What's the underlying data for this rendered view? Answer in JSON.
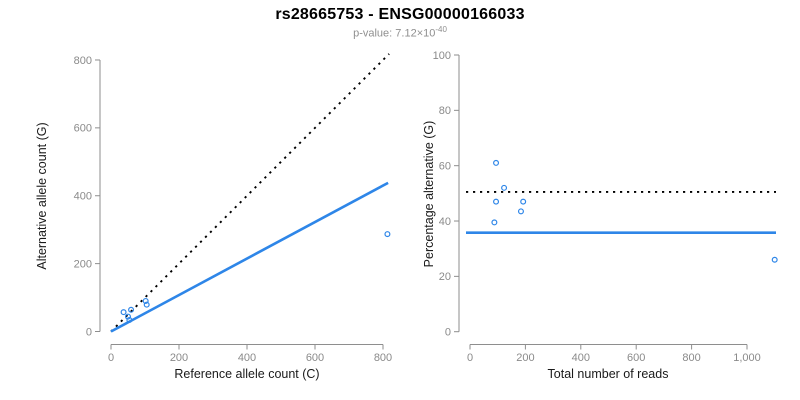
{
  "header": {
    "title": "rs28665753 - ENSG00000166033",
    "subtitle_prefix": "p-value: ",
    "subtitle_mantissa": "7.12×10",
    "subtitle_exponent": "-40"
  },
  "colors": {
    "accent_blue": "#2E86E8",
    "dotted_black": "#000000",
    "axis_gray": "#8E8E8E",
    "tick_label_gray": "#8A8A8A",
    "axis_title_color": "#1A1A1A",
    "background": "#FFFFFF"
  },
  "chart_data": [
    {
      "type": "scatter",
      "panel": "left",
      "xlabel": "Reference allele count (C)",
      "ylabel": "Alternative allele count (G)",
      "xlim": [
        0,
        800
      ],
      "ylim": [
        0,
        800
      ],
      "grid": false,
      "legend": null,
      "xticks": {
        "values": [
          0,
          200,
          400,
          600,
          800
        ],
        "labels": [
          "0",
          "200",
          "400",
          "600",
          "800"
        ]
      },
      "yticks": {
        "values": [
          0,
          200,
          400,
          600,
          800
        ],
        "labels": [
          "0",
          "200",
          "400",
          "600",
          "800"
        ]
      },
      "points": [
        [
          37,
          57
        ],
        [
          59,
          64
        ],
        [
          50,
          44
        ],
        [
          102,
          90
        ],
        [
          105,
          79
        ],
        [
          54,
          34
        ],
        [
          813,
          287
        ]
      ],
      "lines": [
        {
          "name": "identity-line",
          "style": "dotted",
          "color_key": "dotted_black",
          "x1": 0,
          "y1": 0,
          "x2": 818,
          "y2": 818
        },
        {
          "name": "fit-line",
          "style": "solid",
          "color_key": "accent_blue",
          "x1": 0,
          "y1": 0,
          "x2": 815,
          "y2": 438
        }
      ]
    },
    {
      "type": "scatter",
      "panel": "right",
      "xlabel": "Total number of reads",
      "ylabel": "Percentage alternative (G)",
      "xlim": [
        0,
        1000
      ],
      "ylim": [
        0,
        100
      ],
      "grid": false,
      "legend": null,
      "xticks": {
        "values": [
          0,
          200,
          400,
          600,
          800,
          1000
        ],
        "labels": [
          "0",
          "200",
          "400",
          "600",
          "800",
          "1,000"
        ]
      },
      "yticks": {
        "values": [
          0,
          20,
          40,
          60,
          80,
          100
        ],
        "labels": [
          "0",
          "20",
          "40",
          "60",
          "80",
          "100"
        ]
      },
      "points": [
        [
          94,
          61
        ],
        [
          123,
          52
        ],
        [
          94,
          47
        ],
        [
          192,
          47
        ],
        [
          184,
          43.5
        ],
        [
          88,
          39.5
        ],
        [
          1100,
          26
        ]
      ],
      "lines": [
        {
          "name": "null-line",
          "style": "dotted",
          "color_key": "dotted_black",
          "hy": 50.5
        },
        {
          "name": "fit-line",
          "style": "solid",
          "color_key": "accent_blue",
          "hy": 35.8
        }
      ]
    }
  ]
}
